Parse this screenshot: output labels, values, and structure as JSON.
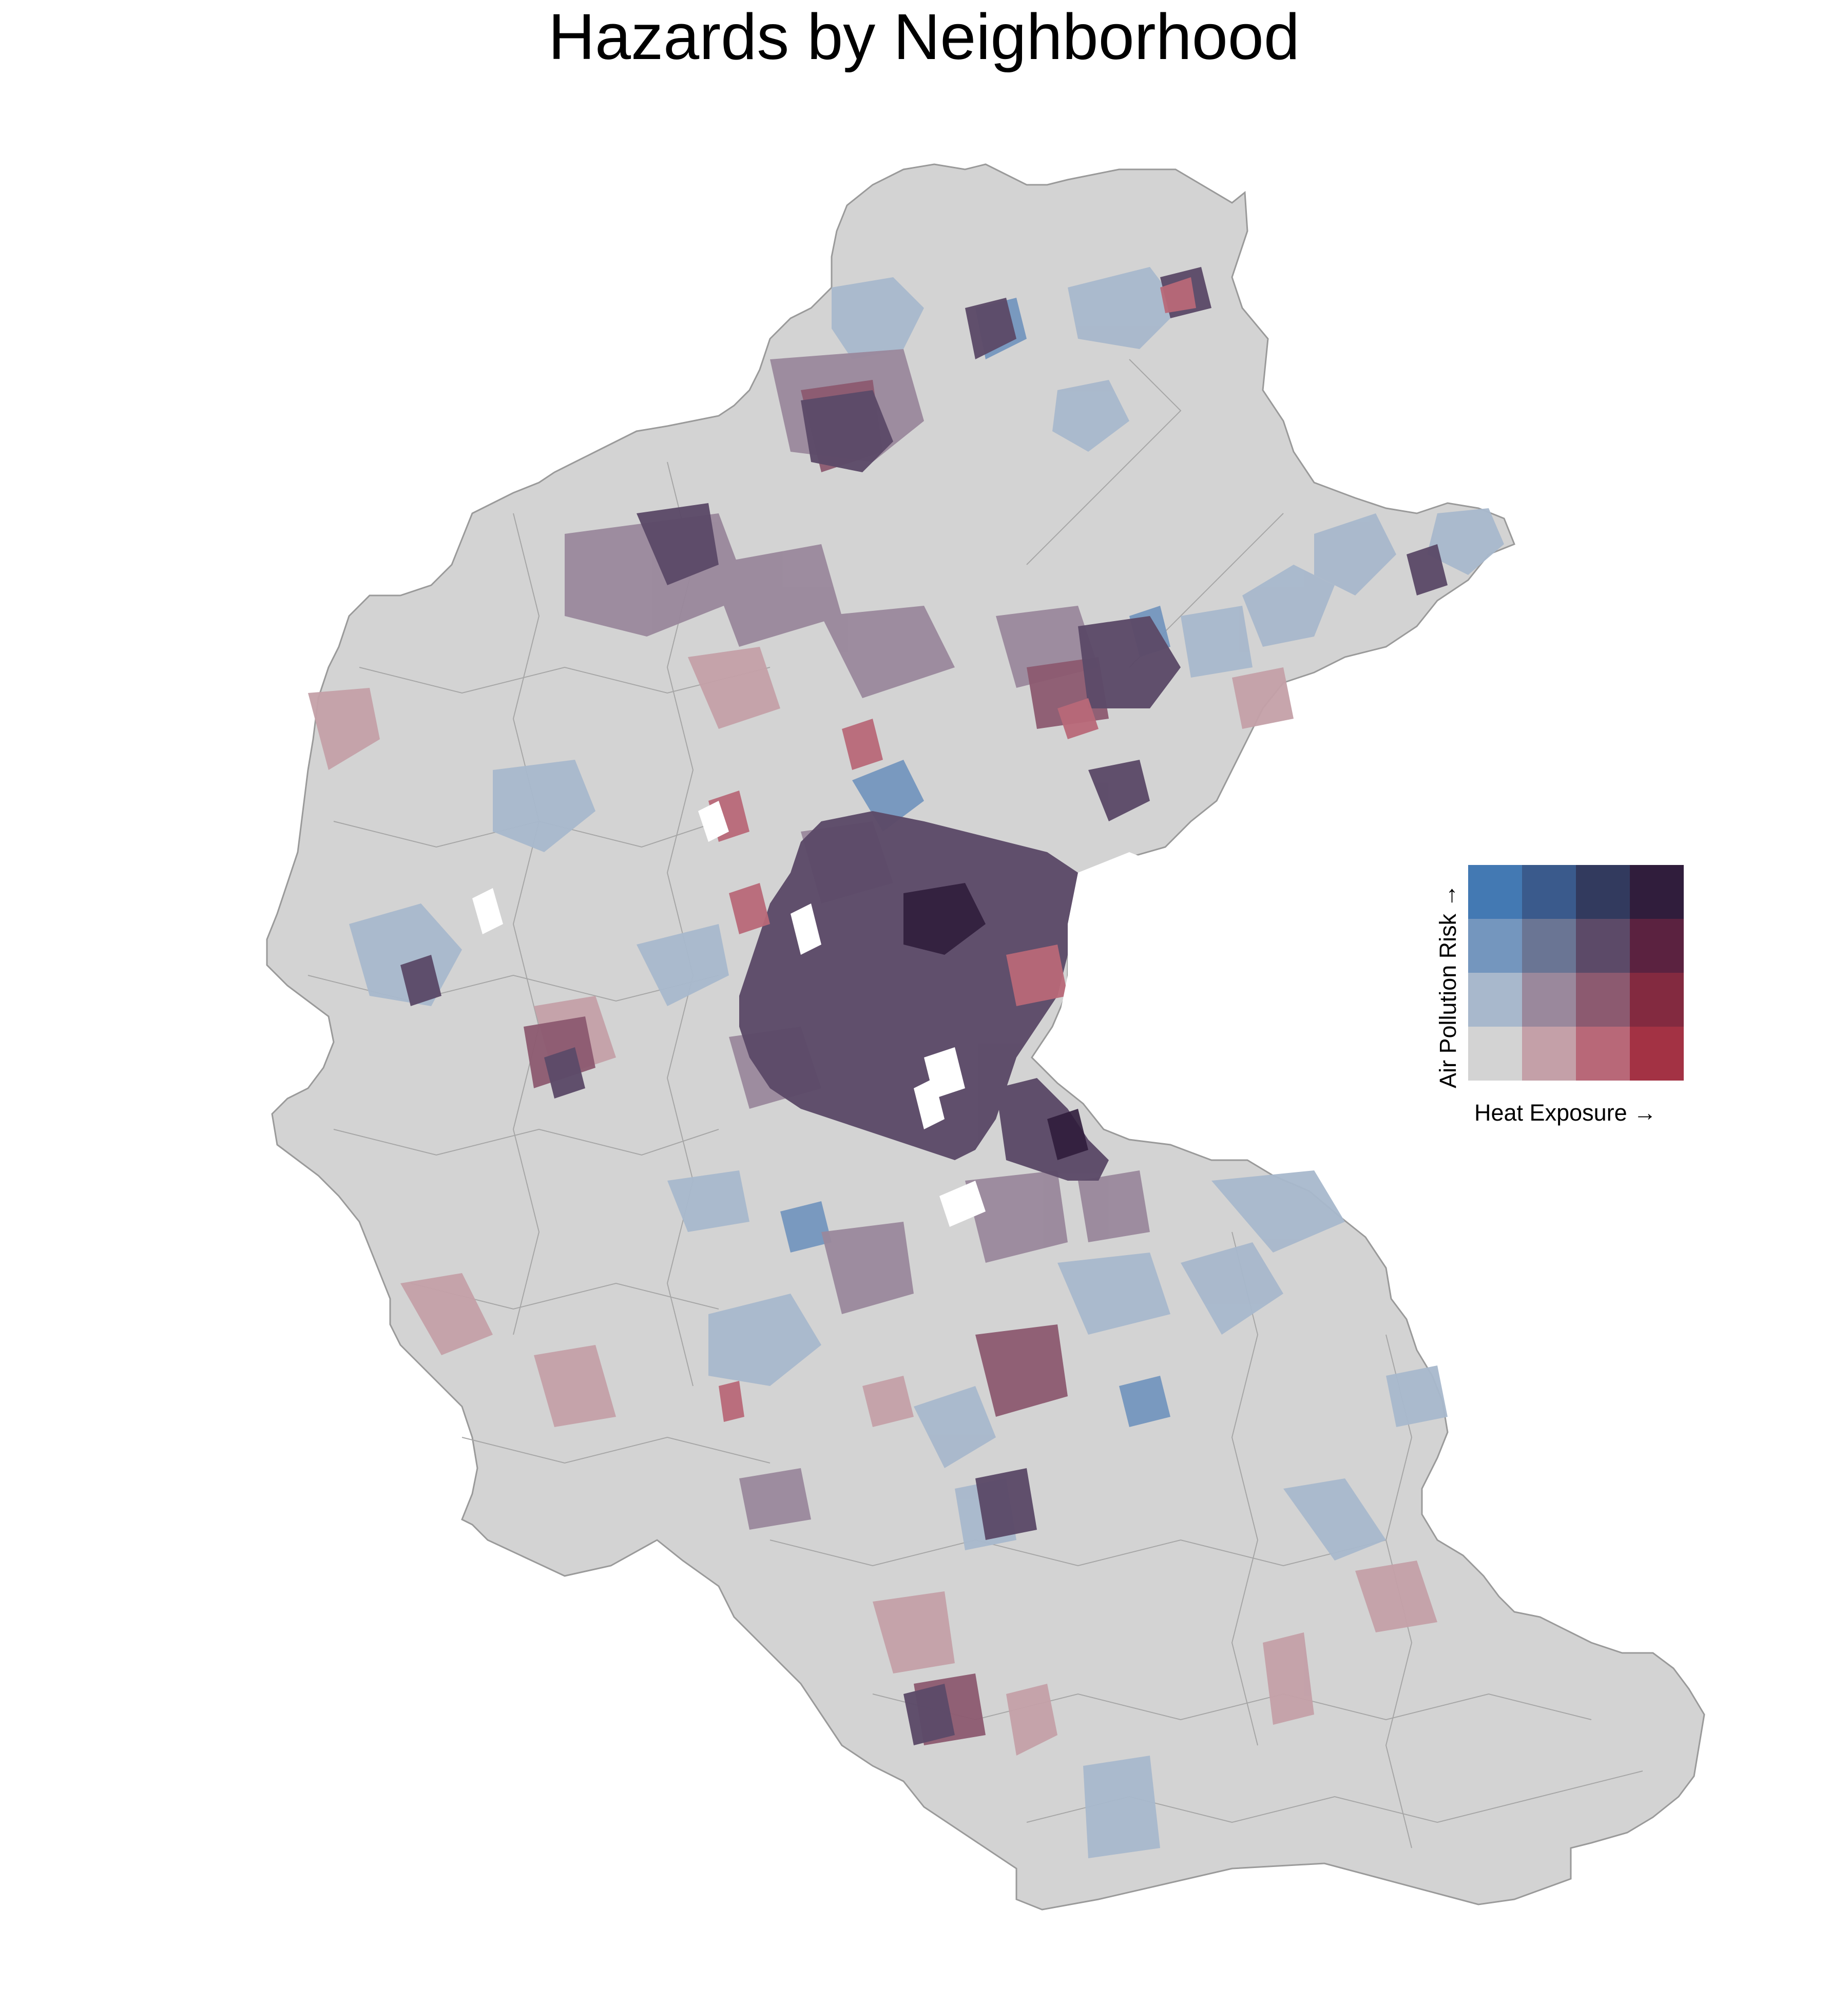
{
  "title": "Hazards by Neighborhood",
  "legend": {
    "x_label": "Heat Exposure →",
    "y_label": "Air Pollution Risk →",
    "grid_size": 4,
    "colors_top_to_bottom": [
      [
        "#4379b3",
        "#3a5a8c",
        "#323a5e",
        "#301d3c"
      ],
      [
        "#7496be",
        "#6a7594",
        "#5c4a68",
        "#5b2240"
      ],
      [
        "#a8b8cc",
        "#9a889c",
        "#8c5a70",
        "#832a40"
      ],
      [
        "#d3d3d3",
        "#c4a0a8",
        "#b86878",
        "#a33244"
      ]
    ]
  },
  "map": {
    "background_fill": "#d3d3d3",
    "boundary_stroke": "#9a9a9a",
    "dominant_colors": [
      "#5c4a68",
      "#6a7594",
      "#a8b8cc",
      "#c4a0a8",
      "#9a889c",
      "#8c5a70",
      "#301d3c",
      "#4379b3",
      "#b86878"
    ]
  }
}
